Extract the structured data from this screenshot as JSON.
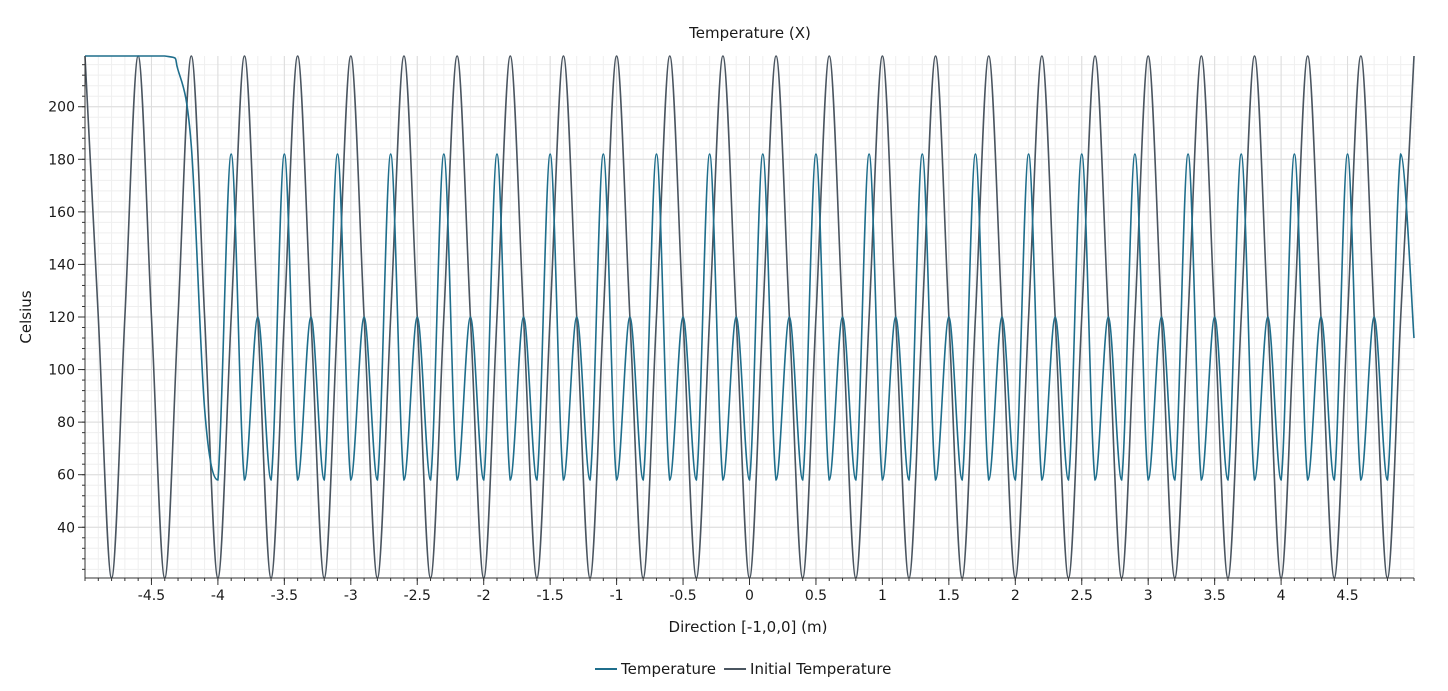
{
  "chart_data": {
    "type": "line",
    "title": "Temperature (X)",
    "xlabel": "Direction [-1,0,0] (m)",
    "ylabel": "Celsius",
    "xlim": [
      -5.0,
      5.0
    ],
    "ylim": [
      20.7,
      219.3
    ],
    "x_ticks": [
      -4.5,
      -4,
      -3.5,
      -3,
      -2.5,
      -2,
      -1.5,
      -1,
      -0.5,
      0,
      0.5,
      1,
      1.5,
      2,
      2.5,
      3,
      3.5,
      4,
      4.5
    ],
    "x_tick_labels": [
      "-4.5",
      "-4",
      "-3.5",
      "-3",
      "-2.5",
      "-2",
      "-1.5",
      "-1",
      "-0.5",
      "0",
      "0.5",
      "1",
      "1.5",
      "2",
      "2.5",
      "3",
      "3.5",
      "4",
      "4.5"
    ],
    "y_ticks": [
      40,
      60,
      80,
      100,
      120,
      140,
      160,
      180,
      200
    ],
    "y_tick_labels": [
      "40",
      "60",
      "80",
      "100",
      "120",
      "140",
      "160",
      "180",
      "200"
    ],
    "grid": true,
    "legend_position": "bottom-center",
    "series": [
      {
        "name": "Temperature",
        "color": "#1f6e8c",
        "x": [
          -5.0,
          -4.4,
          -4.3,
          -4.2,
          -4.1,
          -4.0,
          -3.9,
          -3.8,
          -3.7,
          -3.6,
          -3.5,
          -3.4,
          -3.3,
          -3.2,
          -3.1,
          -3.0,
          -2.9,
          -2.8,
          -2.7,
          -2.6,
          -2.5,
          -2.4,
          -2.3,
          -2.2,
          -2.1,
          -2.0,
          -1.9,
          -1.8,
          -1.7,
          -1.6,
          -1.5,
          -1.4,
          -1.3,
          -1.2,
          -1.1,
          -1.0,
          -0.9,
          -0.8,
          -0.7,
          -0.6,
          -0.5,
          -0.4,
          -0.3,
          -0.2,
          -0.1,
          0.0,
          0.1,
          0.2,
          0.3,
          0.4,
          0.5,
          0.6,
          0.7,
          0.8,
          0.9,
          1.0,
          1.1,
          1.2,
          1.3,
          1.4,
          1.5,
          1.6,
          1.7,
          1.8,
          1.9,
          2.0,
          2.1,
          2.2,
          2.3,
          2.4,
          2.5,
          2.6,
          2.7,
          2.8,
          2.9,
          3.0,
          3.1,
          3.2,
          3.3,
          3.4,
          3.5,
          3.6,
          3.7,
          3.8,
          3.9,
          4.0,
          4.1,
          4.2,
          4.3,
          4.4,
          4.5,
          4.6,
          4.7,
          4.8,
          4.9,
          5.0
        ],
        "y": [
          219.3,
          219.3,
          214,
          185,
          85,
          58,
          182,
          58,
          120,
          58,
          182,
          58,
          120,
          58,
          182,
          58,
          120,
          58,
          182,
          58,
          120,
          58,
          182,
          58,
          120,
          58,
          182,
          58,
          120,
          58,
          182,
          58,
          120,
          58,
          182,
          58,
          120,
          58,
          182,
          58,
          120,
          58,
          182,
          58,
          120,
          58,
          182,
          58,
          120,
          58,
          182,
          58,
          120,
          58,
          182,
          58,
          120,
          58,
          182,
          58,
          120,
          58,
          182,
          58,
          120,
          58,
          182,
          58,
          120,
          58,
          182,
          58,
          120,
          58,
          182,
          58,
          120,
          58,
          182,
          58,
          120,
          58,
          182,
          58,
          120,
          58,
          182,
          58,
          120,
          58,
          182,
          58,
          120,
          58,
          182,
          112
        ]
      },
      {
        "name": "Initial Temperature",
        "color": "#4a5560",
        "x": [
          -5.0,
          -4.9,
          -4.8,
          -4.7,
          -4.6,
          -4.5,
          -4.4,
          -4.3,
          -4.2,
          -4.1,
          -4.0,
          -3.9,
          -3.8,
          -3.7,
          -3.6,
          -3.5,
          -3.4,
          -3.3,
          -3.2,
          -3.1,
          -3.0,
          -2.9,
          -2.8,
          -2.7,
          -2.6,
          -2.5,
          -2.4,
          -2.3,
          -2.2,
          -2.1,
          -2.0,
          -1.9,
          -1.8,
          -1.7,
          -1.6,
          -1.5,
          -1.4,
          -1.3,
          -1.2,
          -1.1,
          -1.0,
          -0.9,
          -0.8,
          -0.7,
          -0.6,
          -0.5,
          -0.4,
          -0.3,
          -0.2,
          -0.1,
          0.0,
          0.1,
          0.2,
          0.3,
          0.4,
          0.5,
          0.6,
          0.7,
          0.8,
          0.9,
          1.0,
          1.1,
          1.2,
          1.3,
          1.4,
          1.5,
          1.6,
          1.7,
          1.8,
          1.9,
          2.0,
          2.1,
          2.2,
          2.3,
          2.4,
          2.5,
          2.6,
          2.7,
          2.8,
          2.9,
          3.0,
          3.1,
          3.2,
          3.3,
          3.4,
          3.5,
          3.6,
          3.7,
          3.8,
          3.9,
          4.0,
          4.1,
          4.2,
          4.3,
          4.4,
          4.5,
          4.6,
          4.7,
          4.8,
          4.9,
          5.0
        ],
        "y": [
          219.3,
          120,
          20.7,
          120,
          219.3,
          120,
          20.7,
          120,
          219.3,
          120,
          20.7,
          120,
          219.3,
          120,
          20.7,
          120,
          219.3,
          120,
          20.7,
          120,
          219.3,
          120,
          20.7,
          120,
          219.3,
          120,
          20.7,
          120,
          219.3,
          120,
          20.7,
          120,
          219.3,
          120,
          20.7,
          120,
          219.3,
          120,
          20.7,
          120,
          219.3,
          120,
          20.7,
          120,
          219.3,
          120,
          20.7,
          120,
          219.3,
          120,
          20.7,
          120,
          219.3,
          120,
          20.7,
          120,
          219.3,
          120,
          20.7,
          120,
          219.3,
          120,
          20.7,
          120,
          219.3,
          120,
          20.7,
          120,
          219.3,
          120,
          20.7,
          120,
          219.3,
          120,
          20.7,
          120,
          219.3,
          120,
          20.7,
          120,
          219.3,
          120,
          20.7,
          120,
          219.3,
          120,
          20.7,
          120,
          219.3,
          120,
          20.7,
          120,
          219.3,
          120,
          20.7,
          120,
          219.3,
          120,
          20.7,
          120,
          219.3
        ]
      }
    ]
  }
}
